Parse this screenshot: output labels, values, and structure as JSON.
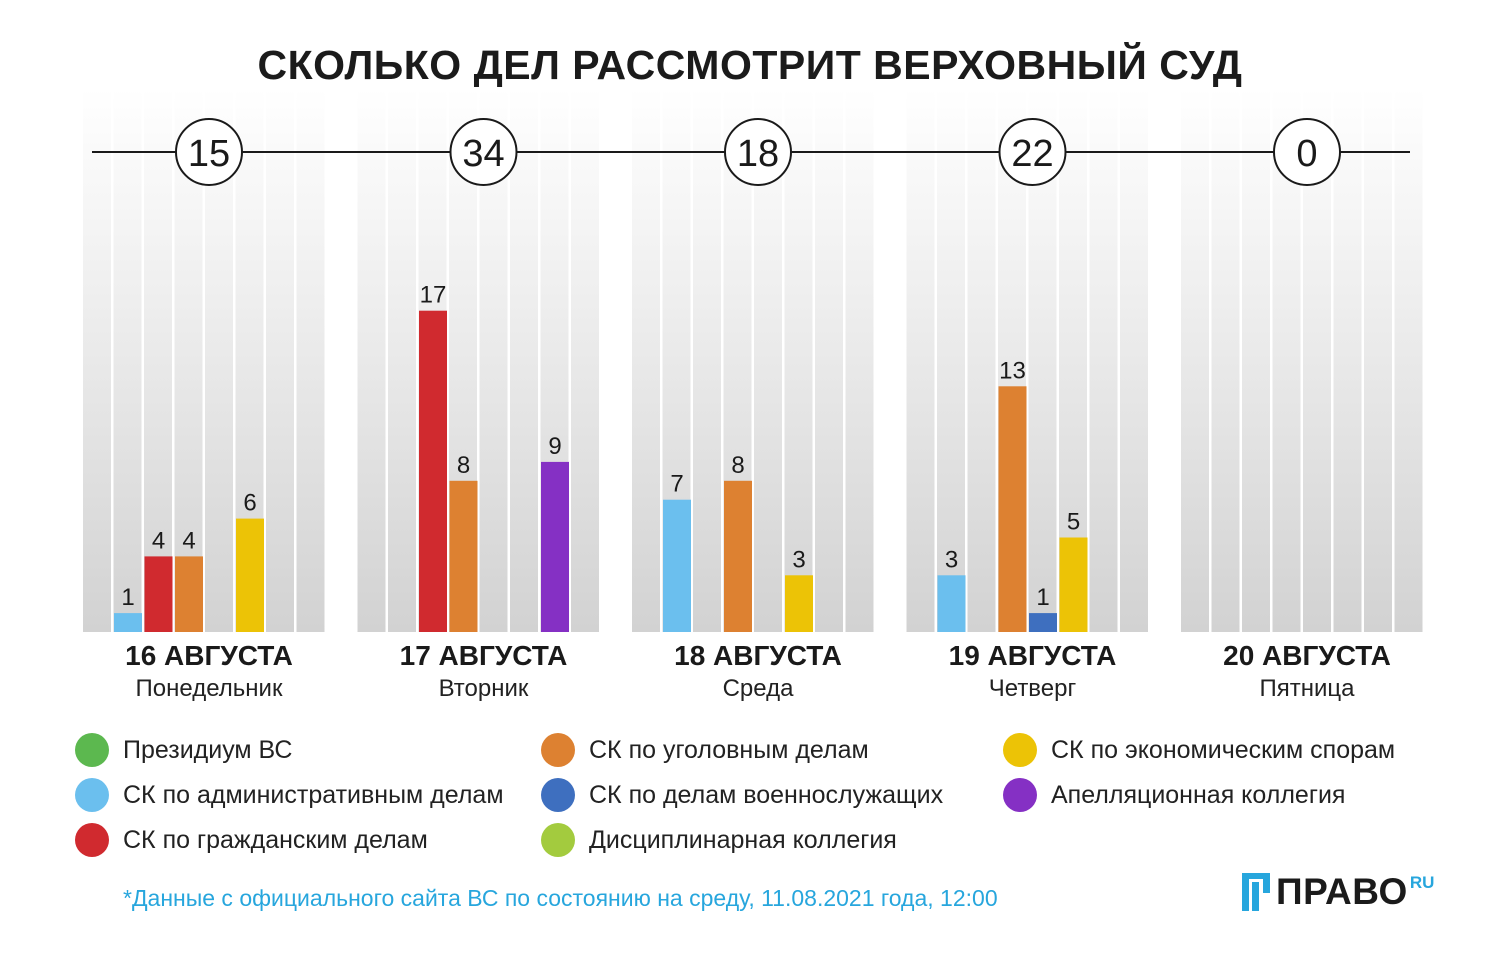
{
  "chart_data": {
    "type": "bar",
    "title": "СКОЛЬКО ДЕЛ РАССМОТРИТ ВЕРХОВНЫЙ СУД",
    "categories": [
      {
        "date": "16 АВГУСТА",
        "weekday": "Понедельник",
        "total": "15"
      },
      {
        "date": "17 АВГУСТА",
        "weekday": "Вторник",
        "total": "34"
      },
      {
        "date": "18 АВГУСТА",
        "weekday": "Среда",
        "total": "18"
      },
      {
        "date": "19 АВГУСТА",
        "weekday": "Четверг",
        "total": "22"
      },
      {
        "date": "20 АВГУСТА",
        "weekday": "Пятница",
        "total": "0"
      }
    ],
    "series": [
      {
        "name": "Президиум ВС",
        "color": "#5cb84f",
        "values": [
          0,
          0,
          0,
          0,
          0
        ]
      },
      {
        "name": "СК по административным делам",
        "color": "#6bbfee",
        "values": [
          1,
          0,
          7,
          3,
          0
        ]
      },
      {
        "name": "СК по гражданским делам",
        "color": "#d02a2f",
        "values": [
          4,
          17,
          0,
          0,
          0
        ]
      },
      {
        "name": "СК по уголовным делам",
        "color": "#dd8131",
        "values": [
          4,
          8,
          8,
          13,
          0
        ]
      },
      {
        "name": "СК по делам военнослужащих",
        "color": "#3e6fbf",
        "values": [
          0,
          0,
          0,
          1,
          0
        ]
      },
      {
        "name": "СК по экономическим спорам",
        "color": "#ecc306",
        "values": [
          6,
          0,
          3,
          5,
          0
        ]
      },
      {
        "name": "Апелляционная коллегия",
        "color": "#8530c4",
        "values": [
          0,
          9,
          0,
          0,
          0
        ]
      },
      {
        "name": "Дисциплинарная коллегия",
        "color": "#a3cb3e",
        "values": [
          0,
          0,
          0,
          0,
          0
        ]
      }
    ],
    "slot_series": [
      1,
      2,
      3,
      4,
      5,
      6
    ],
    "ylim": [
      0,
      20
    ],
    "legend_position": "bottom"
  },
  "legend_columns": [
    [
      0,
      1,
      2
    ],
    [
      3,
      4,
      7
    ],
    [
      5,
      6
    ]
  ],
  "footnote": "*Данные с официального сайта ВС по состоянию на среду, 11.08.2021 года, 12:00",
  "logo": {
    "text": "ПРАВО",
    "suffix": "RU"
  }
}
